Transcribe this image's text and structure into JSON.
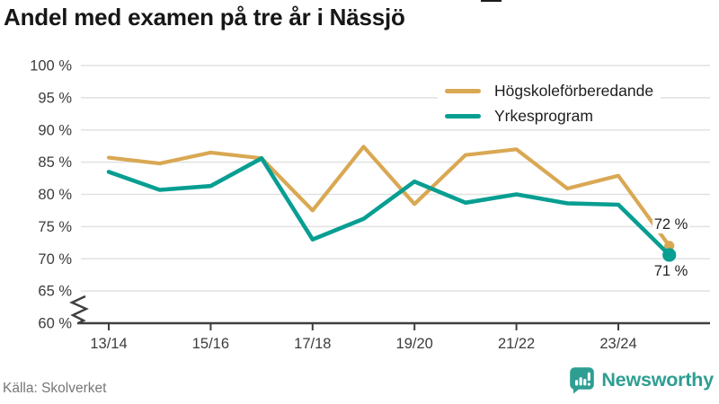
{
  "title": "Andel med examen på tre år i Nässjö",
  "source": "Källa: Skolverket",
  "branding": {
    "name": "Newsworthy",
    "color": "#2e9e92"
  },
  "colors": {
    "title_text": "#171717",
    "axis_text": "#3c3c3c",
    "grid_line": "#e1e1e1",
    "axis_line": "#3f3f3f",
    "source_text": "#767676",
    "background": "#ffffff"
  },
  "chart_data": {
    "type": "line",
    "title": "Andel med examen på tre år i Nässjö",
    "categories": [
      "13/14",
      "14/15",
      "15/16",
      "16/17",
      "17/18",
      "18/19",
      "19/20",
      "20/21",
      "21/22",
      "22/23",
      "23/24",
      "24/25"
    ],
    "series": [
      {
        "name": "Högskoleförberedande",
        "color": "#d9a853",
        "values": [
          85.7,
          84.8,
          86.5,
          85.6,
          77.5,
          87.4,
          78.5,
          86.1,
          87.0,
          80.9,
          82.9,
          72.0
        ],
        "end_label": "72 %"
      },
      {
        "name": "Yrkesprogram",
        "color": "#089e92",
        "values": [
          83.5,
          80.7,
          81.3,
          85.6,
          73.0,
          76.2,
          82.0,
          78.7,
          80.0,
          78.6,
          78.4,
          70.6
        ],
        "end_label": "71 %"
      }
    ],
    "x_tick_labels": [
      "13/14",
      "15/16",
      "17/18",
      "19/20",
      "21/22",
      "23/24"
    ],
    "y_ticks": [
      100,
      95,
      90,
      85,
      80,
      75,
      70,
      65,
      60
    ],
    "y_tick_suffix": " %",
    "ylim": [
      60,
      100
    ],
    "grid": true,
    "axis_break": true,
    "legend_position": "top-right",
    "xlabel": "",
    "ylabel": ""
  }
}
